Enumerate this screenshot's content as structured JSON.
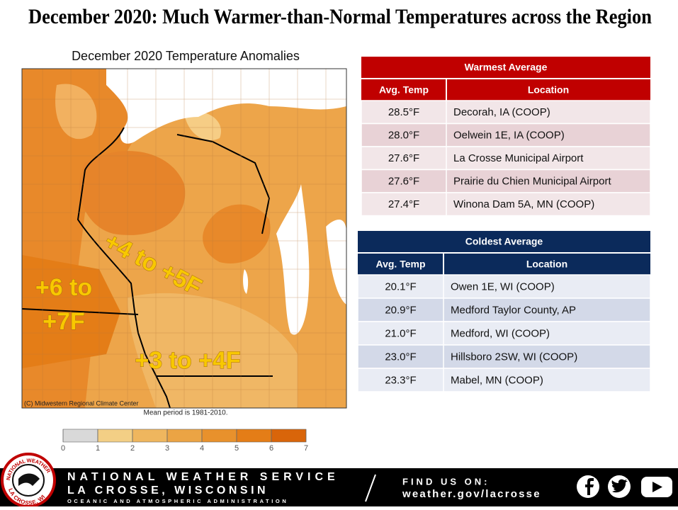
{
  "title": "December 2020:  Much Warmer-than-Normal Temperatures across the Region",
  "map": {
    "title": "December 2020 Temperature Anomalies",
    "annotations": [
      {
        "lines": [
          "+4 to +5F"
        ]
      },
      {
        "lines": [
          "+6 to",
          "+7F"
        ]
      },
      {
        "lines": [
          "+3 to +4F"
        ]
      }
    ],
    "credit": "(C) Midwestern Regional Climate Center",
    "note": "Mean period is 1981-2010."
  },
  "legend": {
    "ticks": [
      0,
      1,
      2,
      3,
      4,
      5,
      6,
      7
    ],
    "colors": [
      "#d9d9d9",
      "#f3cf85",
      "#efb65e",
      "#eba444",
      "#e8912c",
      "#e47d17",
      "#d9650a"
    ]
  },
  "tables": [
    {
      "title": "Warmest  Average",
      "header": [
        "Avg. Temp",
        "Location"
      ],
      "rows": [
        [
          "28.5°F",
          "Decorah, IA (COOP)"
        ],
        [
          "28.0°F",
          "Oelwein 1E, IA (COOP)"
        ],
        [
          "27.6°F",
          "La Crosse Municipal Airport"
        ],
        [
          "27.6°F",
          "Prairie du Chien Municipal Airport"
        ],
        [
          "27.4°F",
          "Winona Dam 5A, MN (COOP)"
        ]
      ]
    },
    {
      "title": "Coldest Average",
      "header": [
        "Avg. Temp",
        "Location"
      ],
      "rows": [
        [
          "20.1°F",
          "Owen 1E, WI (COOP)"
        ],
        [
          "20.9°F",
          "Medford Taylor County, AP"
        ],
        [
          "21.0°F",
          "Medford, WI (COOP)"
        ],
        [
          "23.0°F",
          "Hillsboro 2SW, WI (COOP)"
        ],
        [
          "23.3°F",
          "Mabel, MN (COOP)"
        ]
      ]
    }
  ],
  "footer": {
    "logo": [
      "NATIONAL WEATHER SERVICE",
      "LA CROSSE, WI"
    ],
    "org": "NATIONAL WEATHER SERVICE",
    "office": "LA CROSSE, WISCONSIN",
    "parent": "OCEANIC AND ATMOSPHERIC ADMINISTRATION",
    "find": "FIND US ON:",
    "url": "weather.gov/lacrosse"
  }
}
